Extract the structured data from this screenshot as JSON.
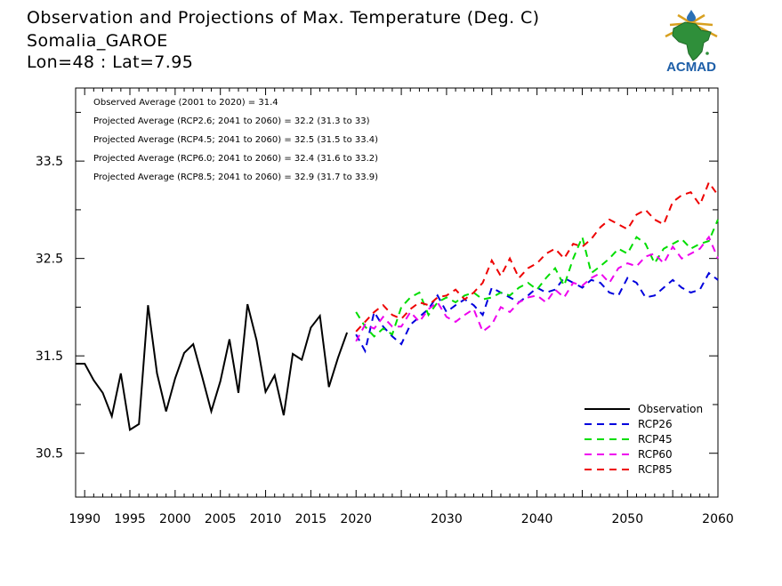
{
  "header": {
    "title": "Observation and Projections of Max. Temperature (Deg. C)",
    "location": "Somalia_GAROE",
    "coords": "Lon=48 : Lat=7.95"
  },
  "logo": {
    "text": "ACMAD",
    "icon": "africa-map-logo-icon"
  },
  "chart_data": {
    "type": "line",
    "xlim": [
      1989,
      2060
    ],
    "ylim": [
      30.05,
      34.25
    ],
    "y_ticks": [
      30.5,
      31.5,
      32.5,
      33.5
    ],
    "y_tick_labels": [
      "30.5",
      "31.5",
      "32.5",
      "33.5"
    ],
    "x_tick_labels": [
      {
        "year": 1990,
        "label": "1990"
      },
      {
        "year": 1995,
        "label": "1995"
      },
      {
        "year": 2000,
        "label": "2000"
      },
      {
        "year": 2005,
        "label": "2005"
      },
      {
        "year": 2010,
        "label": "2010"
      },
      {
        "year": 2015,
        "label": "2015"
      },
      {
        "year": 2020,
        "label": "2020"
      },
      {
        "year": 2030,
        "label": "2030"
      },
      {
        "year": 2040,
        "label": "2040"
      },
      {
        "year": 2050,
        "label": "2050"
      },
      {
        "year": 2060,
        "label": "2060"
      }
    ],
    "annotations": [
      "Observed Average (2001 to 2020) = 31.4",
      "Projected Average (RCP2.6; 2041 to 2060) = 32.2 (31.3 to 33)",
      "Projected Average (RCP4.5; 2041 to 2060) = 32.5 (31.5 to 33.4)",
      "Projected Average (RCP6.0; 2041 to 2060) = 32.4 (31.6 to 33.2)",
      "Projected Average (RCP8.5; 2041 to 2060) = 32.9 (31.7 to 33.9)"
    ],
    "legend_position": "bottom-right",
    "observation": {
      "name": "Observation",
      "color": "#000000",
      "x": [
        1989,
        1990,
        1991,
        1992,
        1993,
        1994,
        1995,
        1996,
        1997,
        1998,
        1999,
        2000,
        2001,
        2002,
        2003,
        2004,
        2005,
        2006,
        2007,
        2008,
        2009,
        2010,
        2011,
        2012,
        2013,
        2014,
        2015,
        2016,
        2017,
        2018,
        2019
      ],
      "y": [
        31.42,
        31.42,
        31.25,
        31.12,
        30.88,
        31.32,
        30.74,
        30.8,
        32.02,
        31.32,
        30.93,
        31.27,
        31.53,
        31.62,
        31.28,
        30.93,
        31.24,
        31.67,
        31.12,
        32.03,
        31.66,
        31.13,
        31.3,
        30.89,
        31.52,
        31.46,
        31.79,
        31.91,
        31.18,
        31.48,
        31.74
      ]
    },
    "series": [
      {
        "name": "RCP26",
        "color": "#0000dd",
        "x_start": 2020,
        "values": [
          31.72,
          31.55,
          31.95,
          31.8,
          31.7,
          31.62,
          31.82,
          31.9,
          31.98,
          32.12,
          31.95,
          32.02,
          32.08,
          32.02,
          31.92,
          32.2,
          32.15,
          32.1,
          32.05,
          32.12,
          32.2,
          32.15,
          32.18,
          32.3,
          32.25,
          32.2,
          32.28,
          32.25,
          32.15,
          32.12,
          32.3,
          32.25,
          32.1,
          32.12,
          32.2,
          32.28,
          32.2,
          32.15,
          32.18,
          32.35,
          32.28
        ]
      },
      {
        "name": "RCP45",
        "color": "#00dd00",
        "x_start": 2020,
        "values": [
          31.95,
          31.8,
          31.7,
          31.78,
          31.72,
          32.0,
          32.1,
          32.15,
          31.92,
          32.05,
          32.1,
          32.05,
          32.12,
          32.15,
          32.08,
          32.1,
          32.15,
          32.12,
          32.2,
          32.25,
          32.18,
          32.3,
          32.4,
          32.22,
          32.5,
          32.72,
          32.35,
          32.42,
          32.5,
          32.6,
          32.55,
          32.72,
          32.65,
          32.45,
          32.6,
          32.65,
          32.7,
          32.6,
          32.65,
          32.68,
          32.9
        ]
      },
      {
        "name": "RCP60",
        "color": "#ee00ee",
        "x_start": 2020,
        "values": [
          31.65,
          31.82,
          31.78,
          31.9,
          31.8,
          31.8,
          31.95,
          31.85,
          31.98,
          32.05,
          31.9,
          31.85,
          31.92,
          31.98,
          31.75,
          31.82,
          32.0,
          31.95,
          32.05,
          32.1,
          32.12,
          32.05,
          32.18,
          32.1,
          32.25,
          32.22,
          32.3,
          32.35,
          32.25,
          32.4,
          32.45,
          32.42,
          32.52,
          32.55,
          32.45,
          32.62,
          32.5,
          32.55,
          32.6,
          32.72,
          32.5
        ]
      },
      {
        "name": "RCP85",
        "color": "#ee0000",
        "x_start": 2020,
        "values": [
          31.75,
          31.85,
          31.95,
          32.02,
          31.92,
          31.88,
          31.98,
          32.05,
          32.02,
          32.1,
          32.12,
          32.18,
          32.08,
          32.15,
          32.25,
          32.48,
          32.32,
          32.5,
          32.3,
          32.4,
          32.45,
          32.55,
          32.6,
          32.5,
          32.65,
          32.62,
          32.7,
          32.82,
          32.9,
          32.85,
          32.8,
          32.95,
          33.0,
          32.9,
          32.85,
          33.08,
          33.15,
          33.18,
          33.05,
          33.28,
          33.15
        ]
      }
    ]
  }
}
